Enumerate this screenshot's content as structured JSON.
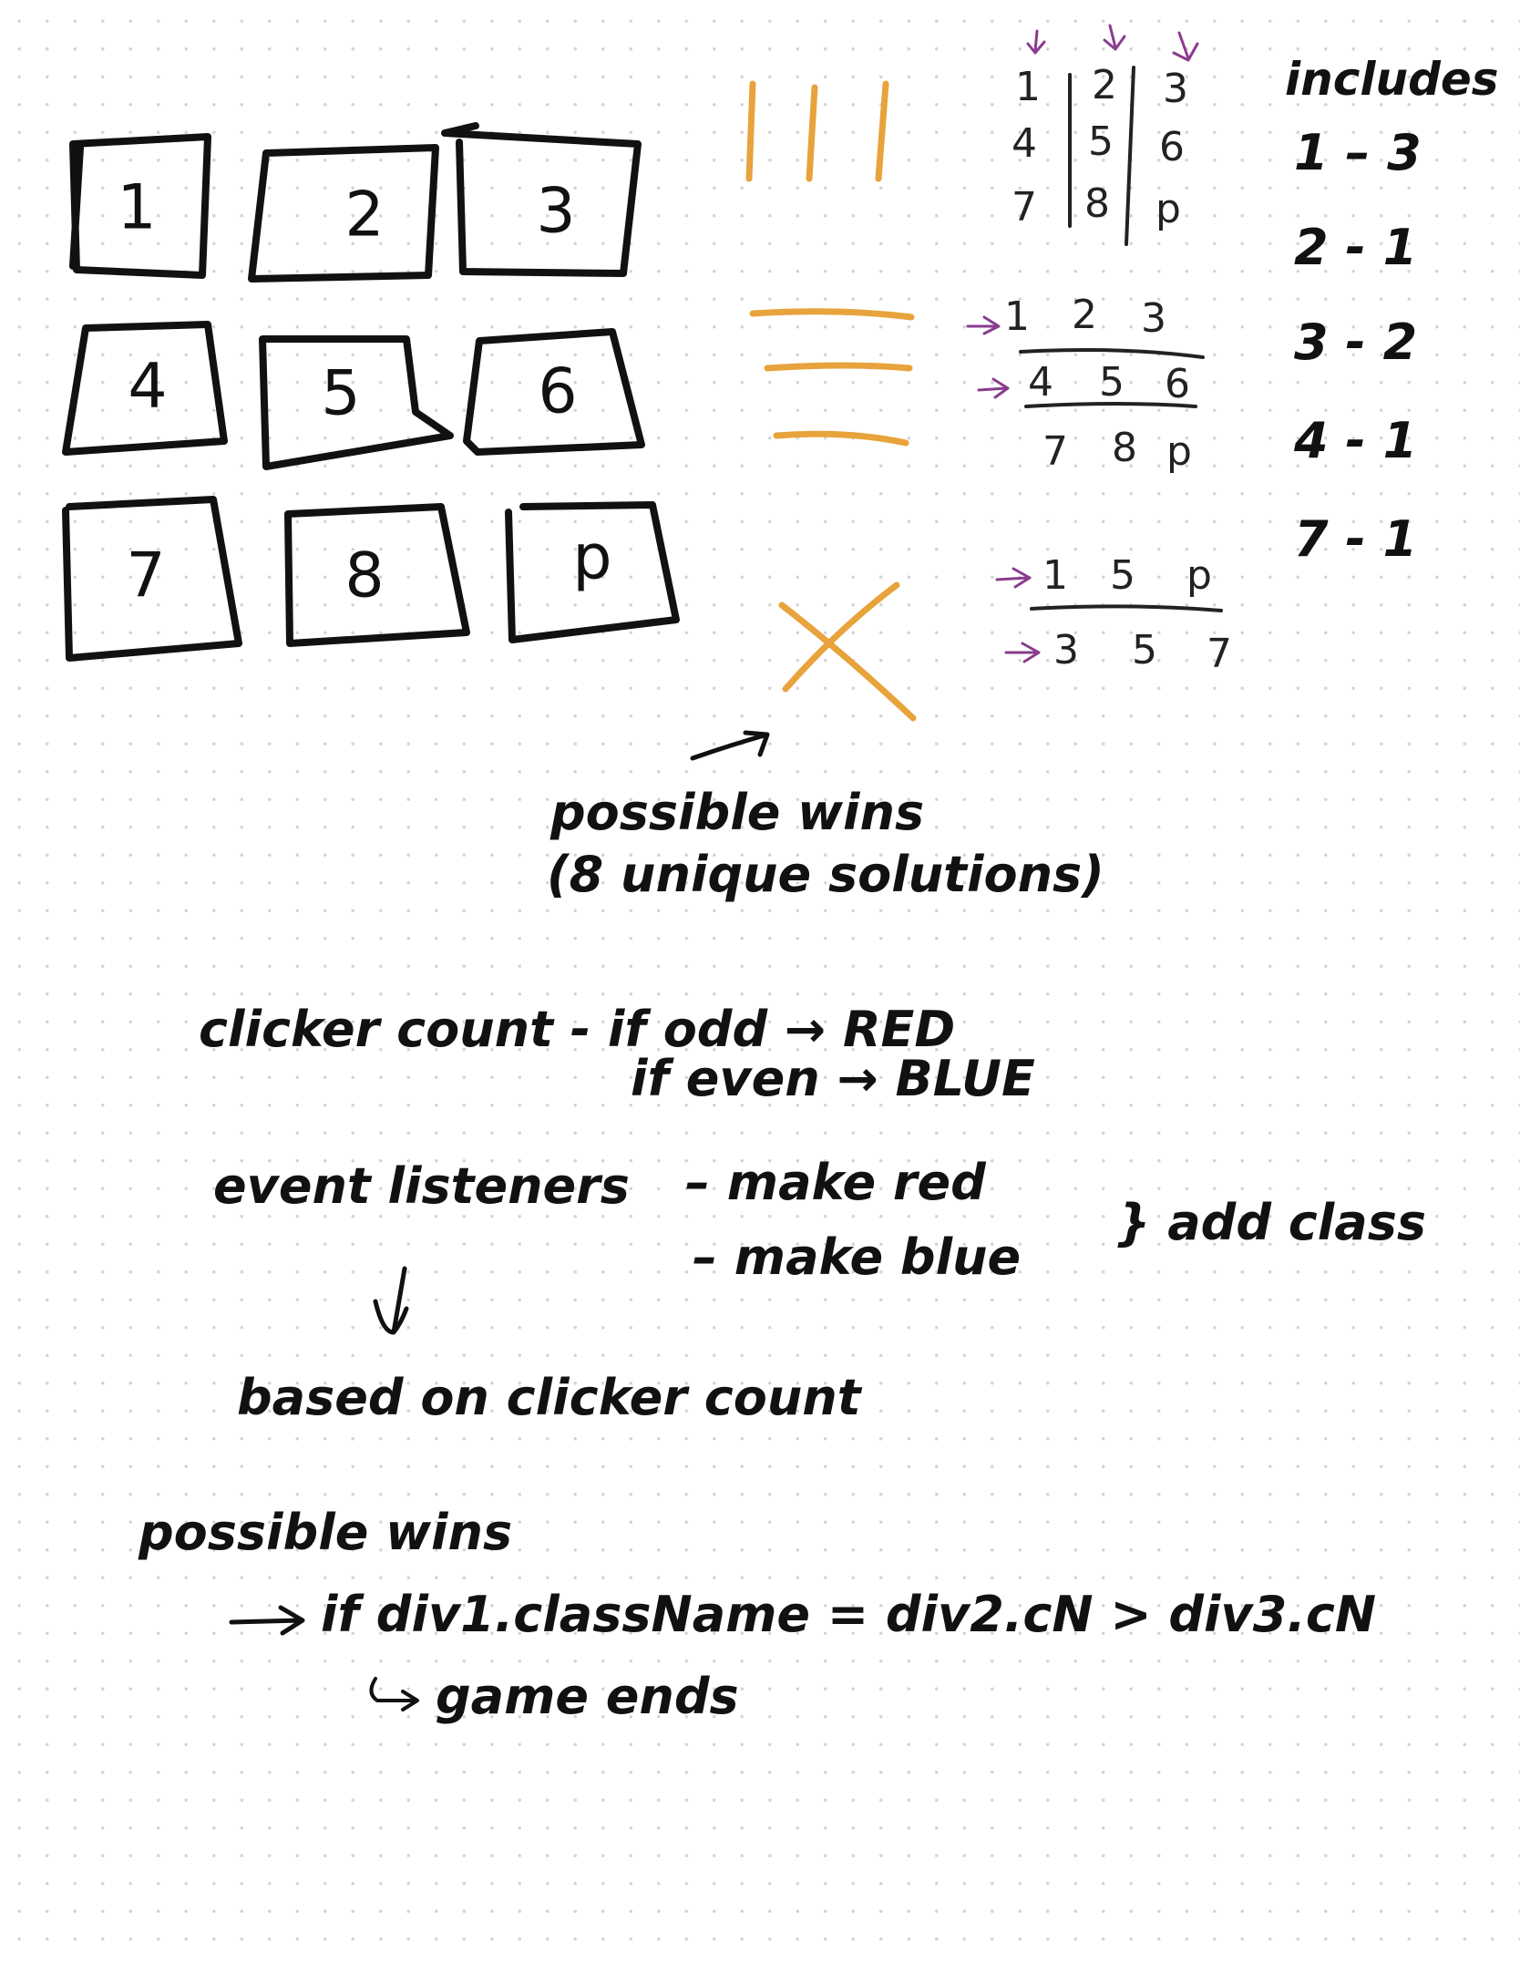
{
  "colors": {
    "ink": "#111111",
    "accent_orange": "#e8a33c",
    "accent_purple": "#8a3c8e",
    "dot_grid": "#d4d4d4"
  },
  "board": {
    "cells": [
      "1",
      "2",
      "3",
      "4",
      "5",
      "6",
      "7",
      "8",
      "p"
    ]
  },
  "columns_example": {
    "rows": [
      [
        "1",
        "2",
        "3"
      ],
      [
        "4",
        "5",
        "6"
      ],
      [
        "7",
        "8",
        "p"
      ]
    ]
  },
  "rows_example": {
    "rows": [
      [
        "1",
        "2",
        "3"
      ],
      [
        "4",
        "5",
        "6"
      ],
      [
        "7",
        "8",
        "p"
      ]
    ]
  },
  "diagonals_example": {
    "rows": [
      [
        "1",
        "5",
        "p"
      ],
      [
        "3",
        "5",
        "7"
      ]
    ]
  },
  "includes": {
    "title": "includes",
    "items": [
      "1 – 3",
      "2 - 1",
      "3 - 2",
      "4 - 1",
      "7 - 1"
    ]
  },
  "notes": {
    "possible_wins_1": "possible wins",
    "possible_wins_2": "(8 unique solutions)",
    "click_count": "clicker count - if odd → RED",
    "click_even": "if even → BLUE",
    "event_listeners": "event listeners",
    "make_red": "– make red",
    "make_blue": "– make blue",
    "add_class": "} add class",
    "based_on": "based on clicker count",
    "possible_wins_3": "possible wins",
    "if_line": "if div1.className = div2.cN > div3.cN",
    "game_ends": "game ends"
  }
}
